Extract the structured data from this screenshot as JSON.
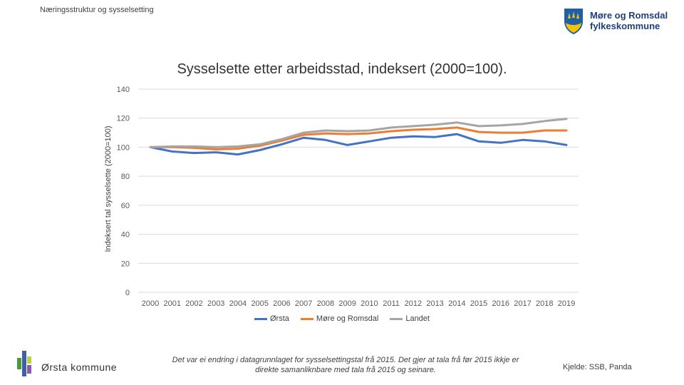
{
  "header": {
    "section_title": "Næringsstruktur og sysselsetting",
    "logo_line1": "Møre og Romsdal",
    "logo_line2": "fylkeskommune"
  },
  "chart_data": {
    "type": "line",
    "title": "Sysselsette etter arbeidsstad, indeksert (2000=100).",
    "xlabel": "",
    "ylabel": "Indeksert tal sysselsette (2000=100)",
    "ylim": [
      0,
      140
    ],
    "yticks": [
      0,
      20,
      40,
      60,
      80,
      100,
      120,
      140
    ],
    "grid": true,
    "legend": "bottom",
    "x": [
      "2000",
      "2001",
      "2002",
      "2003",
      "2004",
      "2005",
      "2006",
      "2007",
      "2008",
      "2009",
      "2010",
      "2011",
      "2012",
      "2013",
      "2014",
      "2015",
      "2016",
      "2017",
      "2018",
      "2019"
    ],
    "series": [
      {
        "name": "Ørsta",
        "color": "#4472c4",
        "values": [
          100,
          97,
          96,
          96.5,
          95,
          98,
          102,
          106.5,
          105,
          101.5,
          104,
          106.5,
          107.5,
          107,
          109,
          104,
          103,
          105,
          104,
          101.5
        ]
      },
      {
        "name": "Møre og Romsdal",
        "color": "#ed7d31",
        "values": [
          100,
          100,
          99.5,
          98.5,
          99,
          101,
          104.5,
          108.5,
          109.5,
          109,
          109.5,
          111,
          112,
          112.5,
          113.5,
          110.5,
          110,
          110,
          111.5,
          111.5
        ]
      },
      {
        "name": "Landet",
        "color": "#a5a5a5",
        "values": [
          100,
          100.5,
          100.5,
          100,
          100.5,
          102,
          105.5,
          110,
          111.5,
          111,
          111.5,
          113.5,
          114.5,
          115.5,
          117,
          114.5,
          115,
          116,
          118,
          119.5
        ]
      }
    ]
  },
  "footer": {
    "kommune_name": "Ørsta kommune",
    "note": "Det var ei endring i datagrunnlaget for sysselsettingstal frå 2015. Det gjer at tala frå før 2015 ikkje er direkte samanliknbare med tala frå 2015 og seinare.",
    "source": "Kjelde: SSB, Panda"
  }
}
